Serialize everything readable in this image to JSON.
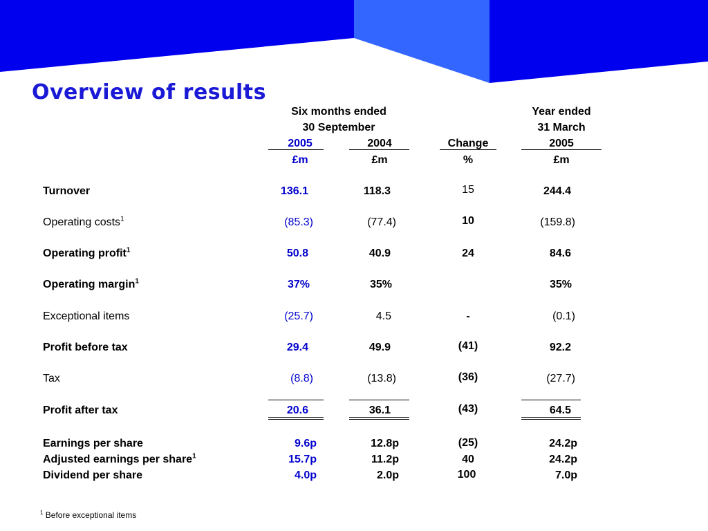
{
  "title": "Overview of results",
  "banner_colors": {
    "dark": "#0000ee",
    "light": "#3366ff"
  },
  "header": {
    "six_months_line1": "Six months ended",
    "six_months_line2": "30 September",
    "year_2005": "2005",
    "year_2004": "2004",
    "change": "Change",
    "year_ended_line1": "Year ended",
    "year_ended_line2": "31 March",
    "year_ended_year": "2005",
    "unit_2005": "£m",
    "unit_2004": "£m",
    "unit_change": "%",
    "unit_year": "£m"
  },
  "rows": {
    "turnover": {
      "label": "Turnover",
      "v2005": "136.1",
      "v2004": "118.3",
      "change": "15",
      "year": "244.4"
    },
    "operating_costs": {
      "label": "Operating costs",
      "sup": "1",
      "v2005": "(85.3)",
      "v2004": "(77.4)",
      "change": "10",
      "year": "(159.8)"
    },
    "operating_profit": {
      "label": "Operating profit",
      "sup": "1",
      "v2005": "50.8",
      "v2004": "40.9",
      "change": "24",
      "year": "84.6"
    },
    "operating_margin": {
      "label": "Operating margin",
      "sup": "1",
      "v2005": "37%",
      "v2004": "35%",
      "change": "",
      "year": "35%"
    },
    "exceptional_items": {
      "label": "Exceptional items",
      "v2005": "(25.7)",
      "v2004": "4.5",
      "change": "-",
      "year": "(0.1)"
    },
    "profit_before_tax": {
      "label": "Profit before tax",
      "v2005": "29.4",
      "v2004": "49.9",
      "change": "(41)",
      "year": "92.2"
    },
    "tax": {
      "label": "Tax",
      "v2005": "(8.8)",
      "v2004": "(13.8)",
      "change": "(36)",
      "year": "(27.7)"
    },
    "profit_after_tax": {
      "label": "Profit after tax",
      "v2005": "20.6",
      "v2004": "36.1",
      "change": "(43)",
      "year": "64.5"
    },
    "eps": {
      "label": "Earnings per share",
      "v2005": "9.6p",
      "v2004": "12.8p",
      "change": "(25)",
      "year": "24.2p"
    },
    "adj_eps": {
      "label": "Adjusted earnings per share",
      "sup": "1",
      "v2005": "15.7p",
      "v2004": "11.2p",
      "change": "40",
      "year": "24.2p"
    },
    "dps": {
      "label": "Dividend per share",
      "v2005": "4.0p",
      "v2004": "2.0p",
      "change": "100",
      "year": "7.0p"
    }
  },
  "footnote": {
    "sup": "1",
    "text": "Before exceptional items"
  }
}
